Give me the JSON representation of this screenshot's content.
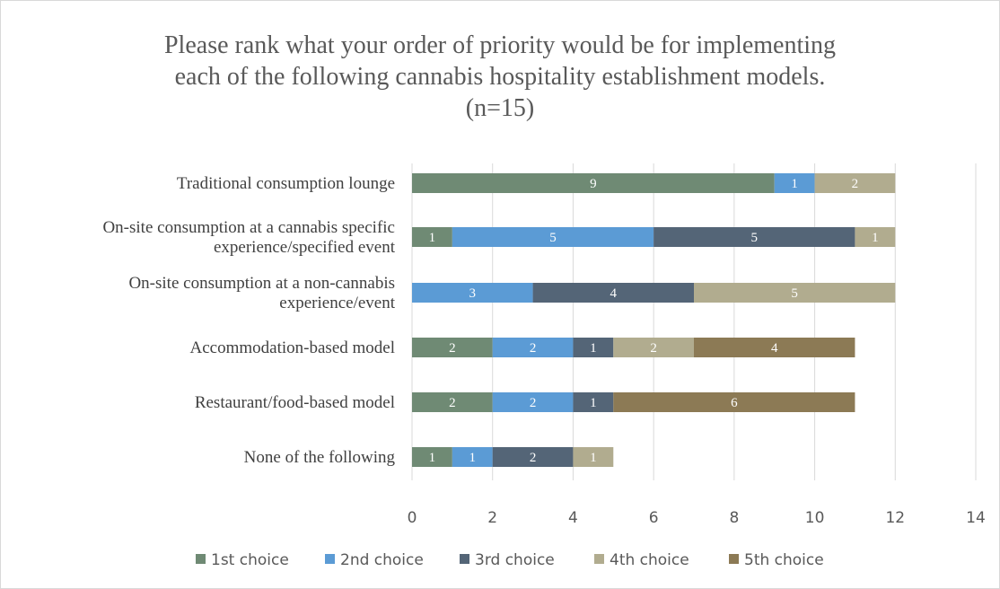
{
  "chart_data": {
    "type": "bar",
    "orientation": "horizontal",
    "stacked": true,
    "title_lines": [
      "Please rank what your order of priority would be for implementing",
      "each of the following cannabis hospitality establishment models.",
      "(n=15)"
    ],
    "categories": [
      [
        "Traditional consumption lounge"
      ],
      [
        "On-site consumption at a cannabis specific",
        "experience/specified event"
      ],
      [
        "On-site consumption at a non-cannabis",
        "experience/event"
      ],
      [
        "Accommodation-based model"
      ],
      [
        "Restaurant/food-based model"
      ],
      [
        "None of the following"
      ]
    ],
    "series": [
      {
        "name": "1st choice",
        "color": "#6f8a74",
        "values": [
          9,
          1,
          0,
          2,
          2,
          1
        ]
      },
      {
        "name": "2nd choice",
        "color": "#5b9bd5",
        "values": [
          1,
          5,
          3,
          2,
          2,
          1
        ]
      },
      {
        "name": "3rd choice",
        "color": "#546577",
        "values": [
          0,
          5,
          4,
          1,
          1,
          2
        ]
      },
      {
        "name": "4th choice",
        "color": "#b1ac8f",
        "values": [
          2,
          1,
          5,
          2,
          0,
          1
        ]
      },
      {
        "name": "5th choice",
        "color": "#8c7a55",
        "values": [
          0,
          0,
          0,
          4,
          6,
          0
        ]
      }
    ],
    "xlim": [
      0,
      14
    ],
    "xticks": [
      0,
      2,
      4,
      6,
      8,
      10,
      12,
      14
    ],
    "grid": true,
    "legend": "bottom"
  }
}
